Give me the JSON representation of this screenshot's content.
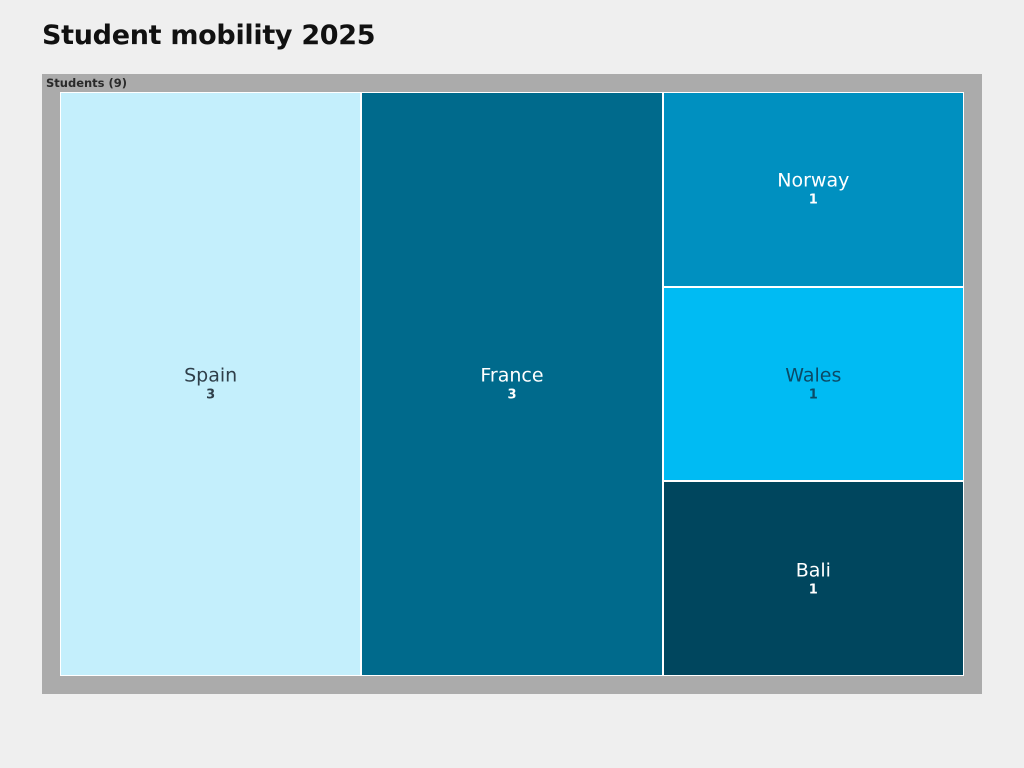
{
  "page": {
    "title": "Student mobility 2025"
  },
  "chart_data": {
    "type": "treemap",
    "title": "Student mobility 2025",
    "root": {
      "name": "Students",
      "label": "Students (9)",
      "value": 9
    },
    "items": [
      {
        "name": "Spain",
        "value": 3,
        "value_label": "3",
        "color": "#c4effc",
        "text_color": "#2f3f4a"
      },
      {
        "name": "France",
        "value": 3,
        "value_label": "3",
        "color": "#006a8c",
        "text_color": "#ffffff"
      },
      {
        "name": "Norway",
        "value": 1,
        "value_label": "1",
        "color": "#0090c0",
        "text_color": "#ffffff"
      },
      {
        "name": "Wales",
        "value": 1,
        "value_label": "1",
        "color": "#00bbf3",
        "text_color": "#0b4a66"
      },
      {
        "name": "Bali",
        "value": 1,
        "value_label": "1",
        "color": "#00465e",
        "text_color": "#ffffff"
      }
    ]
  }
}
